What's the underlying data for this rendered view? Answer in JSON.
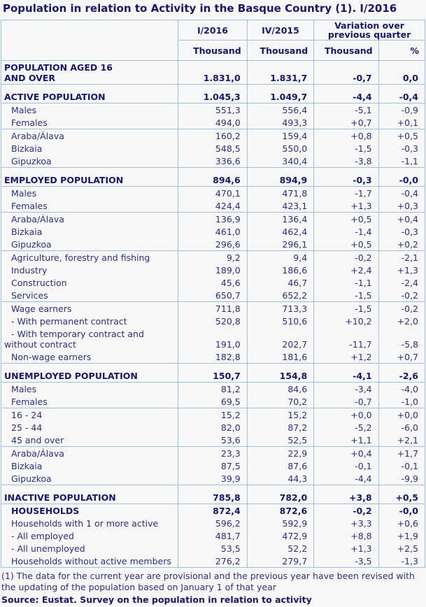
{
  "title": "Population in relation to Activity in the Basque Country (1). I/2016",
  "colors": {
    "text_navy": "#17176e",
    "text_regular": "#2e2e87",
    "grid_blue": "#96c2ee",
    "background": "#f7f7f7"
  },
  "table": {
    "header": {
      "period1": "I/2016",
      "period2": "IV/2015",
      "variation": "Variation over previous quarter",
      "units": [
        "Thousand",
        "Thousand",
        "Thousand",
        "%"
      ]
    },
    "groups": [
      {
        "gap": false,
        "rows": [
          {
            "label_lines": [
              "POPULATION AGED 16",
              "AND OVER"
            ],
            "bold": true,
            "indent": false,
            "values": [
              "1.831,0",
              "1.831,7",
              "-0,7",
              "0,0"
            ]
          }
        ]
      },
      {
        "gap": true,
        "rows": [
          {
            "label_lines": [
              "ACTIVE POPULATION"
            ],
            "bold": true,
            "indent": false,
            "values": [
              "1.045,3",
              "1.049,7",
              "-4,4",
              "-0,4"
            ]
          }
        ]
      },
      {
        "gap": false,
        "rows": [
          {
            "label_lines": [
              "Males"
            ],
            "bold": false,
            "indent": true,
            "values": [
              "551,3",
              "556,4",
              "-5,1",
              "-0,9"
            ]
          },
          {
            "label_lines": [
              "Females"
            ],
            "bold": false,
            "indent": true,
            "values": [
              "494,0",
              "493,3",
              "+0,7",
              "+0,1"
            ]
          }
        ]
      },
      {
        "gap": false,
        "rows": [
          {
            "label_lines": [
              "Araba/Álava"
            ],
            "bold": false,
            "indent": true,
            "values": [
              "160,2",
              "159,4",
              "+0,8",
              "+0,5"
            ]
          },
          {
            "label_lines": [
              "Bizkaia"
            ],
            "bold": false,
            "indent": true,
            "values": [
              "548,5",
              "550,0",
              "-1,5",
              "-0,3"
            ]
          },
          {
            "label_lines": [
              "Gipuzkoa"
            ],
            "bold": false,
            "indent": true,
            "values": [
              "336,6",
              "340,4",
              "-3,8",
              "-1,1"
            ]
          }
        ]
      },
      {
        "gap": true,
        "rows": [
          {
            "label_lines": [
              "EMPLOYED POPULATION"
            ],
            "bold": true,
            "indent": false,
            "values": [
              "894,6",
              "894,9",
              "-0,3",
              "-0,0"
            ]
          }
        ]
      },
      {
        "gap": false,
        "rows": [
          {
            "label_lines": [
              "Males"
            ],
            "bold": false,
            "indent": true,
            "values": [
              "470,1",
              "471,8",
              "-1,7",
              "-0,4"
            ]
          },
          {
            "label_lines": [
              "Females"
            ],
            "bold": false,
            "indent": true,
            "values": [
              "424,4",
              "423,1",
              "+1,3",
              "+0,3"
            ]
          }
        ]
      },
      {
        "gap": false,
        "rows": [
          {
            "label_lines": [
              "Araba/Álava"
            ],
            "bold": false,
            "indent": true,
            "values": [
              "136,9",
              "136,4",
              "+0,5",
              "+0,4"
            ]
          },
          {
            "label_lines": [
              "Bizkaia"
            ],
            "bold": false,
            "indent": true,
            "values": [
              "461,0",
              "462,4",
              "-1,4",
              "-0,3"
            ]
          },
          {
            "label_lines": [
              "Gipuzkoa"
            ],
            "bold": false,
            "indent": true,
            "values": [
              "296,6",
              "296,1",
              "+0,5",
              "+0,2"
            ]
          }
        ]
      },
      {
        "gap": false,
        "rows": [
          {
            "label_lines": [
              "Agriculture, forestry and fishing"
            ],
            "bold": false,
            "indent": true,
            "values": [
              "9,2",
              "9,4",
              "-0,2",
              "-2,1"
            ]
          },
          {
            "label_lines": [
              "Industry"
            ],
            "bold": false,
            "indent": true,
            "values": [
              "189,0",
              "186,6",
              "+2,4",
              "+1,3"
            ]
          },
          {
            "label_lines": [
              "Construction"
            ],
            "bold": false,
            "indent": true,
            "values": [
              "45,6",
              "46,7",
              "-1,1",
              "-2,4"
            ]
          },
          {
            "label_lines": [
              "Services"
            ],
            "bold": false,
            "indent": true,
            "values": [
              "650,7",
              "652,2",
              "-1,5",
              "-0,2"
            ]
          }
        ]
      },
      {
        "gap": false,
        "rows": [
          {
            "label_lines": [
              "Wage earners"
            ],
            "bold": false,
            "indent": true,
            "values": [
              "711,8",
              "713,3",
              "-1,5",
              "-0,2"
            ]
          },
          {
            "label_lines": [
              "- With permanent contract"
            ],
            "bold": false,
            "indent": true,
            "values": [
              "520,8",
              "510,6",
              "+10,2",
              "+2,0"
            ]
          },
          {
            "label_lines": [
              " - With temporary contract and",
              "without contract"
            ],
            "bold": false,
            "indent": true,
            "values": [
              "191,0",
              "202,7",
              "-11,7",
              "-5,8"
            ]
          },
          {
            "label_lines": [
              "Non-wage earners"
            ],
            "bold": false,
            "indent": true,
            "values": [
              "182,8",
              "181,6",
              "+1,2",
              "+0,7"
            ]
          }
        ]
      },
      {
        "gap": true,
        "rows": [
          {
            "label_lines": [
              "UNEMPLOYED POPULATION"
            ],
            "bold": true,
            "indent": false,
            "values": [
              "150,7",
              "154,8",
              "-4,1",
              "-2,6"
            ]
          }
        ]
      },
      {
        "gap": false,
        "rows": [
          {
            "label_lines": [
              "Males"
            ],
            "bold": false,
            "indent": true,
            "values": [
              "81,2",
              "84,6",
              "-3,4",
              "-4,0"
            ]
          },
          {
            "label_lines": [
              "Females"
            ],
            "bold": false,
            "indent": true,
            "values": [
              "69,5",
              "70,2",
              "-0,7",
              "-1,0"
            ]
          }
        ]
      },
      {
        "gap": false,
        "rows": [
          {
            "label_lines": [
              "16 - 24"
            ],
            "bold": false,
            "indent": true,
            "values": [
              "15,2",
              "15,2",
              "+0,0",
              "+0,0"
            ]
          },
          {
            "label_lines": [
              "25 - 44"
            ],
            "bold": false,
            "indent": true,
            "values": [
              "82,0",
              "87,2",
              "-5,2",
              "-6,0"
            ]
          },
          {
            "label_lines": [
              "45 and over"
            ],
            "bold": false,
            "indent": true,
            "values": [
              "53,6",
              "52,5",
              "+1,1",
              "+2,1"
            ]
          }
        ]
      },
      {
        "gap": false,
        "rows": [
          {
            "label_lines": [
              "Araba/Álava"
            ],
            "bold": false,
            "indent": true,
            "values": [
              "23,3",
              "22,9",
              "+0,4",
              "+1,7"
            ]
          },
          {
            "label_lines": [
              "Bizkaia"
            ],
            "bold": false,
            "indent": true,
            "values": [
              "87,5",
              "87,6",
              "-0,1",
              "-0,1"
            ]
          },
          {
            "label_lines": [
              "Gipuzkoa"
            ],
            "bold": false,
            "indent": true,
            "values": [
              "39,9",
              "44,3",
              "-4,4",
              "-9,9"
            ]
          }
        ]
      },
      {
        "gap": true,
        "rows": [
          {
            "label_lines": [
              "INACTIVE POPULATION"
            ],
            "bold": true,
            "indent": false,
            "values": [
              "785,8",
              "782,0",
              "+3,8",
              "+0,5"
            ]
          }
        ]
      },
      {
        "gap": false,
        "rows": [
          {
            "label_lines": [
              "HOUSEHOLDS"
            ],
            "bold": true,
            "indent": true,
            "values": [
              "872,4",
              "872,6",
              "-0,2",
              "-0,0"
            ]
          },
          {
            "label_lines": [
              "Households with 1 or more active"
            ],
            "bold": false,
            "indent": true,
            "values": [
              "596,2",
              "592,9",
              "+3,3",
              "+0,6"
            ]
          },
          {
            "label_lines": [
              "- All employed"
            ],
            "bold": false,
            "indent": true,
            "values": [
              "481,7",
              "472,9",
              "+8,8",
              "+1,9"
            ]
          },
          {
            "label_lines": [
              "- All unemployed"
            ],
            "bold": false,
            "indent": true,
            "values": [
              "53,5",
              "52,2",
              "+1,3",
              "+2,5"
            ]
          },
          {
            "label_lines": [
              "Households without active members"
            ],
            "bold": false,
            "indent": true,
            "values": [
              "276,2",
              "279,7",
              "-3,5",
              "-1,3"
            ]
          }
        ]
      }
    ]
  },
  "footnote": "(1) The data for the current year are provisional and the previous year have been revised with the updating of the population based on January 1 of that year",
  "source": "Source: Eustat. Survey on the population in relation to activity"
}
